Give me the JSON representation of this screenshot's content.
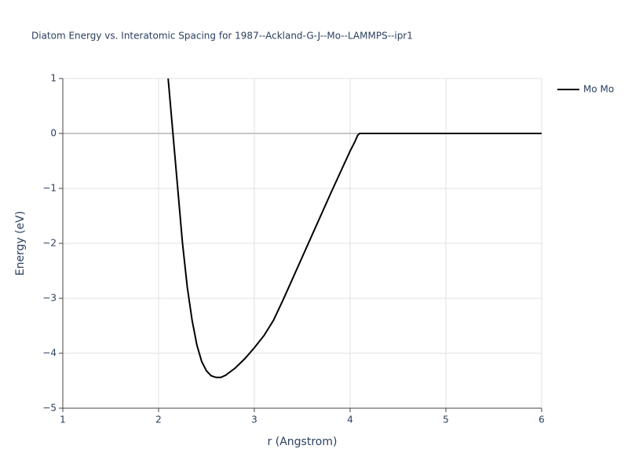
{
  "chart_data": {
    "type": "line",
    "title": "Diatom Energy vs. Interatomic Spacing for 1987--Ackland-G-J--Mo--LAMMPS--ipr1",
    "x_label": "r (Angstrom)",
    "y_label": "Energy (eV)",
    "x": [
      2.1,
      2.15,
      2.2,
      2.25,
      2.3,
      2.35,
      2.4,
      2.45,
      2.5,
      2.55,
      2.6,
      2.65,
      2.7,
      2.8,
      2.9,
      3.0,
      3.1,
      3.2,
      3.3,
      3.4,
      3.5,
      3.6,
      3.7,
      3.8,
      3.9,
      4.0,
      4.05,
      4.08,
      4.1,
      4.2,
      5.0,
      6.0
    ],
    "series": [
      {
        "name": "Mo Mo",
        "color": "#000000",
        "values": [
          1.0,
          0.0,
          -1.0,
          -2.0,
          -2.8,
          -3.4,
          -3.85,
          -4.15,
          -4.32,
          -4.41,
          -4.44,
          -4.44,
          -4.4,
          -4.27,
          -4.1,
          -3.9,
          -3.68,
          -3.4,
          -3.03,
          -2.64,
          -2.25,
          -1.86,
          -1.47,
          -1.08,
          -0.7,
          -0.32,
          -0.15,
          -0.03,
          0.0,
          0.0,
          0.0,
          0.0
        ]
      }
    ],
    "xlim": [
      1,
      6
    ],
    "xticks": [
      1,
      2,
      3,
      4,
      5,
      6
    ],
    "ylim": [
      -5,
      1
    ],
    "yticks": [
      {
        "value": -5,
        "label": "−5"
      },
      {
        "value": -4,
        "label": "−4"
      },
      {
        "value": -3,
        "label": "−3"
      },
      {
        "value": -2,
        "label": "−2"
      },
      {
        "value": -1,
        "label": "−1"
      },
      0,
      1
    ],
    "grid": true,
    "legend": "top-right"
  }
}
